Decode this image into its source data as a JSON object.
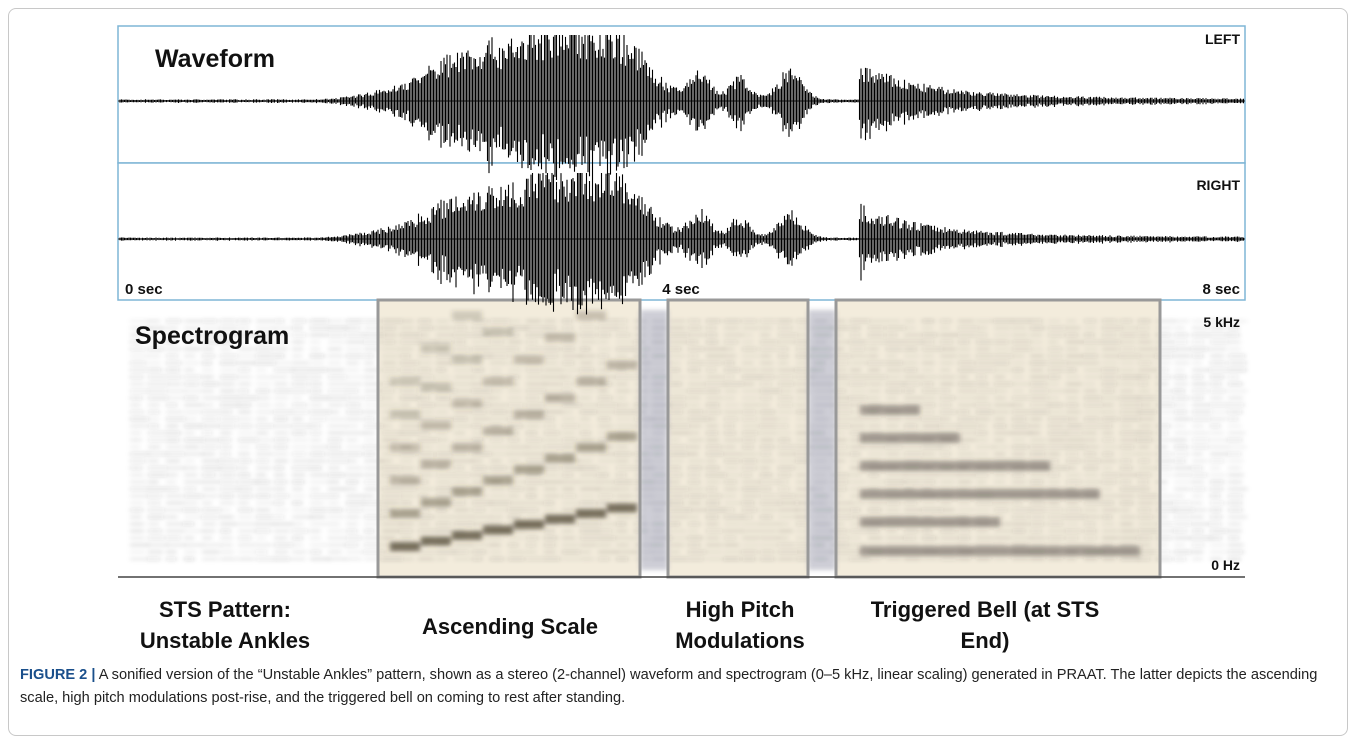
{
  "panel": {
    "waveform_label": "Waveform",
    "left_label": "LEFT",
    "right_label": "RIGHT",
    "time_labels": [
      "0 sec",
      "4 sec",
      "8 sec"
    ],
    "spectrogram_label": "Spectrogram",
    "freq_top": "5 kHz",
    "freq_bottom": "0 Hz",
    "annotations": [
      {
        "lines": [
          "STS Pattern:",
          "Unstable Ankles"
        ]
      },
      {
        "lines": [
          "Ascending Scale"
        ]
      },
      {
        "lines": [
          "High Pitch",
          "Modulations"
        ]
      },
      {
        "lines": [
          "Triggered Bell (at STS",
          "End)"
        ]
      }
    ]
  },
  "caption": {
    "label": "FIGURE 2 |",
    "text": "A sonified version of the “Unstable Ankles” pattern, shown as a stereo (2-channel) waveform and spectrogram (0–5 kHz, linear scaling) generated in PRAAT. The latter depicts the ascending scale, high pitch modulations post-rise, and the triggered bell on coming to rest after standing."
  }
}
